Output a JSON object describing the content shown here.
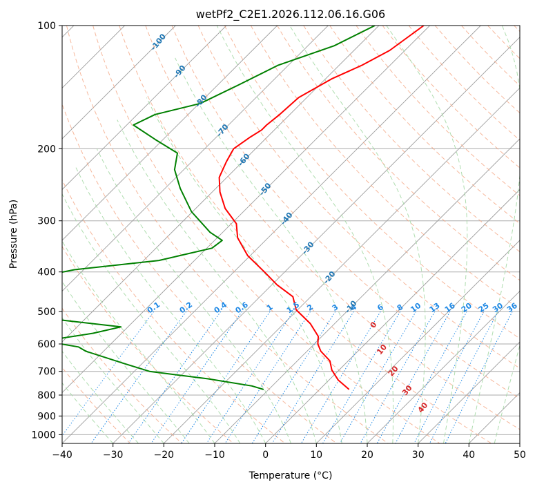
{
  "chart_data": {
    "type": "line",
    "diagram": "skew-T log-P",
    "title": "wetPf2_C2E1.2026.112.06.16.G06",
    "xlabel": "Temperature (°C)",
    "ylabel": "Pressure (hPa)",
    "xlim": [
      -40,
      50
    ],
    "ylim": [
      1050,
      100
    ],
    "y_scale": "log",
    "grid": true,
    "x_ticks": [
      -40,
      -30,
      -20,
      -10,
      0,
      10,
      20,
      30,
      40,
      50
    ],
    "x_tick_labels": [
      "−40",
      "−30",
      "−20",
      "−10",
      "0",
      "10",
      "20",
      "30",
      "40",
      "50"
    ],
    "y_ticks": [
      100,
      200,
      300,
      400,
      500,
      600,
      700,
      800,
      900,
      1000
    ],
    "y_tick_labels": [
      "100",
      "200",
      "300",
      "400",
      "500",
      "600",
      "700",
      "800",
      "900",
      "1000"
    ],
    "series": [
      {
        "color": "#ff0000",
        "points": [
          [
            -51.2,
            100
          ],
          [
            -53.0,
            115
          ],
          [
            -55.5,
            125
          ],
          [
            -58.8,
            135
          ],
          [
            -61.6,
            150
          ],
          [
            -62.0,
            165
          ],
          [
            -62.5,
            175
          ],
          [
            -62.5,
            180
          ],
          [
            -63.4,
            188
          ],
          [
            -64.3,
            200
          ],
          [
            -63.2,
            215
          ],
          [
            -61.5,
            235
          ],
          [
            -58.5,
            255
          ],
          [
            -54.2,
            280
          ],
          [
            -49.0,
            305
          ],
          [
            -46.0,
            330
          ],
          [
            -40.5,
            365
          ],
          [
            -34.0,
            400
          ],
          [
            -29.0,
            430
          ],
          [
            -23.5,
            460
          ],
          [
            -20.3,
            495
          ],
          [
            -14.8,
            535
          ],
          [
            -10.7,
            575
          ],
          [
            -9.3,
            600
          ],
          [
            -7.3,
            625
          ],
          [
            -3.6,
            660
          ],
          [
            -1.4,
            695
          ],
          [
            1.8,
            735
          ],
          [
            5.8,
            775
          ]
        ]
      },
      {
        "color": "#008000",
        "points": [
          [
            -60.8,
            100
          ],
          [
            -64.8,
            112
          ],
          [
            -72.0,
            125
          ],
          [
            -76.0,
            140
          ],
          [
            -79.8,
            155
          ],
          [
            -86.5,
            165
          ],
          [
            -88.7,
            175
          ],
          [
            -81.5,
            190
          ],
          [
            -74.5,
            205
          ],
          [
            -71.8,
            225
          ],
          [
            -67.0,
            250
          ],
          [
            -60.2,
            285
          ],
          [
            -52.5,
            320
          ],
          [
            -48.5,
            335
          ],
          [
            -49.0,
            350
          ],
          [
            -57.0,
            375
          ],
          [
            -71.8,
            395
          ],
          [
            -80.5,
            420
          ],
          [
            -75.0,
            440
          ],
          [
            -82.0,
            470
          ],
          [
            -87.0,
            485
          ],
          [
            -64.0,
            525
          ],
          [
            -51.4,
            545
          ],
          [
            -55.6,
            565
          ],
          [
            -63.8,
            590
          ],
          [
            -55.8,
            610
          ],
          [
            -53.5,
            625
          ],
          [
            -43.5,
            670
          ],
          [
            -37.0,
            700
          ],
          [
            -24.0,
            730
          ],
          [
            -14.0,
            760
          ],
          [
            -11.0,
            775
          ]
        ]
      }
    ],
    "dry_adiabat_labels": [
      "-100",
      "-90",
      "-80",
      "-70",
      "-60",
      "-50",
      "-40",
      "-30",
      "-20",
      "-10"
    ],
    "moist_adiabat_labels": [
      "0",
      "10",
      "20",
      "30",
      "40"
    ],
    "mixing_ratio_labels": [
      "0.1",
      "0.2",
      "0.4",
      "0.6",
      "1",
      "1.5",
      "2",
      "3",
      "4",
      "6",
      "8",
      "10",
      "13",
      "16",
      "20",
      "25",
      "30",
      "36"
    ],
    "colors": {
      "temperature": "#ff0000",
      "dewpoint": "#008000",
      "isotherms": "#9e9e9e",
      "isobars": "#aaaaaa",
      "dry_adiabats": "#f4a582",
      "moist_adiabats": "#a6d9a6",
      "mixing_ratio": "#1e88e5",
      "dry_adiabat_labels": "#1f77b4",
      "moist_adiabat_labels": "#d62728"
    }
  }
}
